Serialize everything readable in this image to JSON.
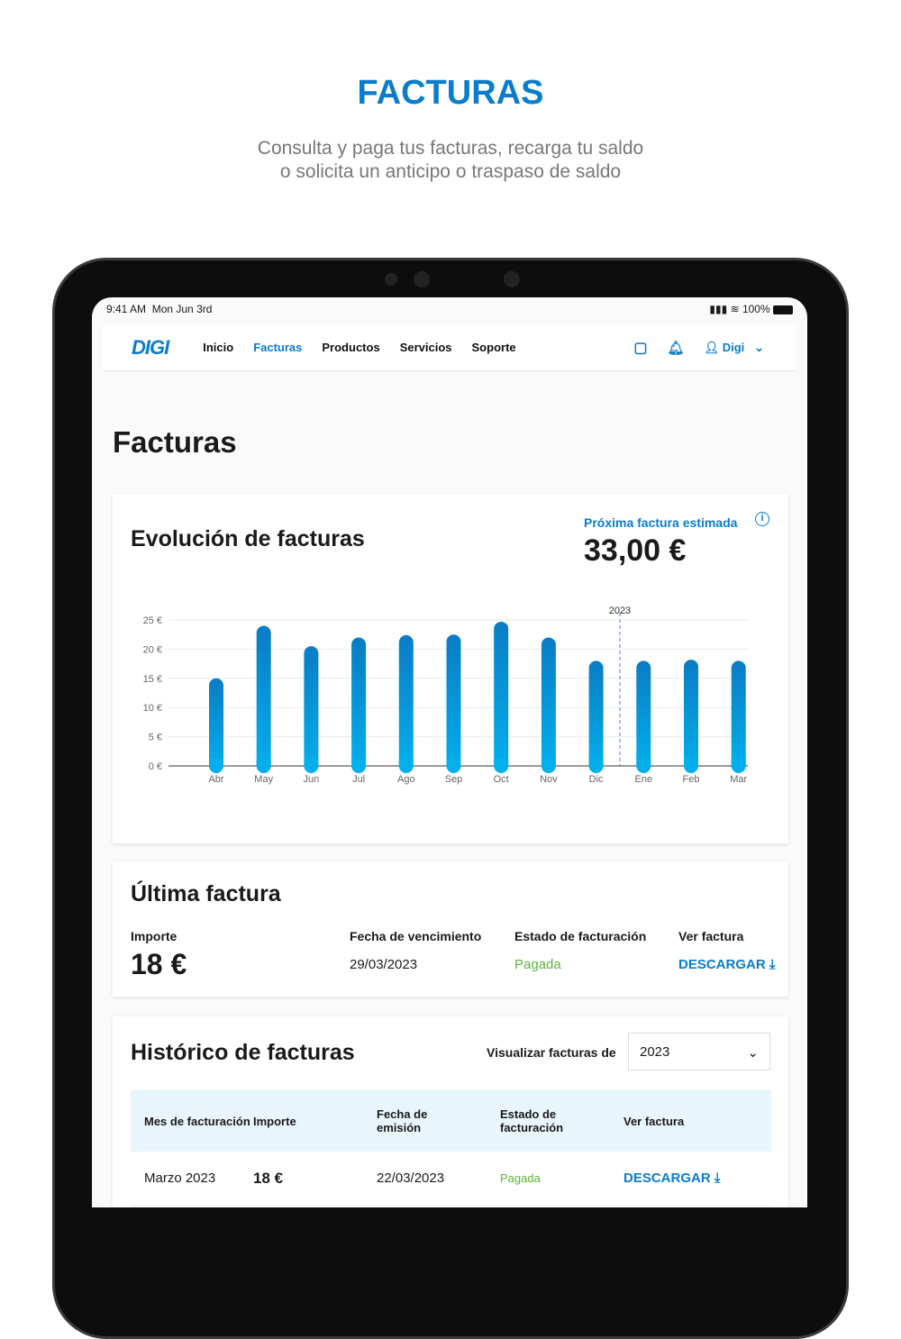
{
  "hero": {
    "title": "FACTURAS",
    "subtitle_line1": "Consulta y paga tus facturas, recarga tu saldo",
    "subtitle_line2": "o solicita un anticipo o traspaso de saldo"
  },
  "status_bar": {
    "time": "9:41 AM",
    "date": "Mon Jun 3rd",
    "battery": "100%"
  },
  "nav": {
    "logo": "DIGI",
    "items": [
      "Inicio",
      "Facturas",
      "Productos",
      "Servicios",
      "Soporte"
    ],
    "active": "Facturas",
    "user": "Digi"
  },
  "page_title": "Facturas",
  "evolution": {
    "title": "Evolución de facturas",
    "next_label": "Próxima factura estimada",
    "next_value": "33,00 €"
  },
  "chart_data": {
    "type": "bar",
    "categories": [
      "Abr",
      "May",
      "Jun",
      "Jul",
      "Ago",
      "Sep",
      "Oct",
      "Nov",
      "Dic",
      "Ene",
      "Feb",
      "Mar"
    ],
    "values": [
      15,
      24,
      20.5,
      22,
      22.4,
      22.5,
      24.7,
      22,
      18,
      18,
      18.2,
      18
    ],
    "ylim": [
      0,
      25
    ],
    "yticks": [
      "0 €",
      "5 €",
      "10 €",
      "15 €",
      "20 €",
      "25 €"
    ],
    "grid": true,
    "annotation": "2023",
    "bar_color": "#0a7ccc"
  },
  "last_invoice": {
    "title": "Última factura",
    "amount_label": "Importe",
    "amount": "18 €",
    "due_label": "Fecha de vencimiento",
    "due": "29/03/2023",
    "status_label": "Estado de facturación",
    "status": "Pagada",
    "view_label": "Ver factura",
    "download": "DESCARGAR"
  },
  "history": {
    "title": "Histórico de facturas",
    "filter_label": "Visualizar facturas de",
    "year": "2023",
    "headers": [
      "Mes de facturación",
      "Importe",
      "Fecha de emisión",
      "Estado de facturación",
      "Ver factura"
    ],
    "rows": [
      {
        "month": "Marzo 2023",
        "amount": "18 €",
        "date": "22/03/2023",
        "status": "Pagada",
        "action": "DESCARGAR"
      }
    ]
  }
}
